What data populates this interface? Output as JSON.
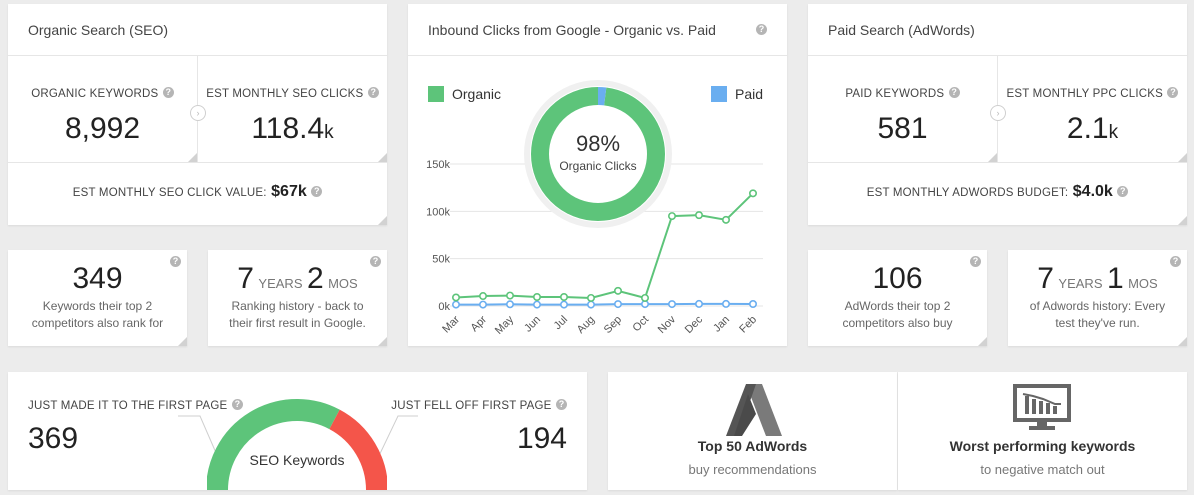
{
  "seo": {
    "title": "Organic Search (SEO)",
    "keywords_label": "ORGANIC KEYWORDS",
    "keywords_value": "8,992",
    "clicks_label": "EST MONTHLY SEO CLICKS",
    "clicks_value": "118.4",
    "clicks_unit": "k",
    "click_value_label": "EST MONTHLY SEO CLICK VALUE:",
    "click_value": "$67k"
  },
  "chart_card": {
    "title": "Inbound Clicks from Google - Organic vs. Paid",
    "legend_organic": "Organic",
    "legend_paid": "Paid",
    "donut_percent": "98%",
    "donut_label": "Organic Clicks"
  },
  "chart_data": {
    "type": "line",
    "categories": [
      "Mar",
      "Apr",
      "May",
      "Jun",
      "Jul",
      "Aug",
      "Sep",
      "Oct",
      "Nov",
      "Dec",
      "Jan",
      "Feb"
    ],
    "series": [
      {
        "name": "Organic",
        "color": "#5dc47a",
        "values": [
          9000,
          10500,
          11000,
          9500,
          9500,
          8500,
          16000,
          8500,
          95000,
          96000,
          91000,
          119000
        ]
      },
      {
        "name": "Paid",
        "color": "#6aaef0",
        "values": [
          1500,
          1500,
          1800,
          1500,
          1500,
          1500,
          2000,
          2000,
          2000,
          2200,
          2200,
          2100
        ]
      }
    ],
    "y_ticks": [
      "0k",
      "50k",
      "100k",
      "150k"
    ],
    "ylim": [
      0,
      150000
    ],
    "donut": {
      "organic_pct": 98,
      "paid_pct": 2
    }
  },
  "ppc": {
    "title": "Paid Search (AdWords)",
    "keywords_label": "PAID KEYWORDS",
    "keywords_value": "581",
    "clicks_label": "EST MONTHLY PPC CLICKS",
    "clicks_value": "2.1",
    "clicks_unit": "k",
    "budget_label": "EST MONTHLY ADWORDS BUDGET:",
    "budget_value": "$4.0k"
  },
  "competitors_seo": {
    "value": "349",
    "text1": "Keywords their top 2",
    "text2": "competitors also rank for"
  },
  "history_seo": {
    "years": "7",
    "years_label": "YEARS",
    "mos": "2",
    "mos_label": "MOS",
    "text1": "Ranking history - back to",
    "text2": "their first result in Google."
  },
  "competitors_ppc": {
    "value": "106",
    "text1": "AdWords their top 2",
    "text2": "competitors also buy"
  },
  "history_ppc": {
    "years": "7",
    "years_label": "YEARS",
    "mos": "1",
    "mos_label": "MOS",
    "text1": "of Adwords history: Every",
    "text2": "test they've run."
  },
  "keywords_gauge": {
    "left_label": "JUST MADE IT TO THE FIRST PAGE",
    "left_value": "369",
    "right_label": "JUST FELL OFF FIRST PAGE",
    "right_value": "194",
    "center_label": "SEO Keywords",
    "made_value": 369,
    "fell_value": 194
  },
  "adwords_recs": {
    "title": "Top 50 AdWords",
    "subtitle": "buy recommendations"
  },
  "worst_keywords": {
    "title": "Worst performing keywords",
    "subtitle": "to negative match out"
  },
  "colors": {
    "green": "#5dc47a",
    "red": "#f4554a",
    "blue": "#6aaef0",
    "grey_icon": "#666666"
  },
  "icons": {
    "help": "?",
    "arrow": "›"
  }
}
